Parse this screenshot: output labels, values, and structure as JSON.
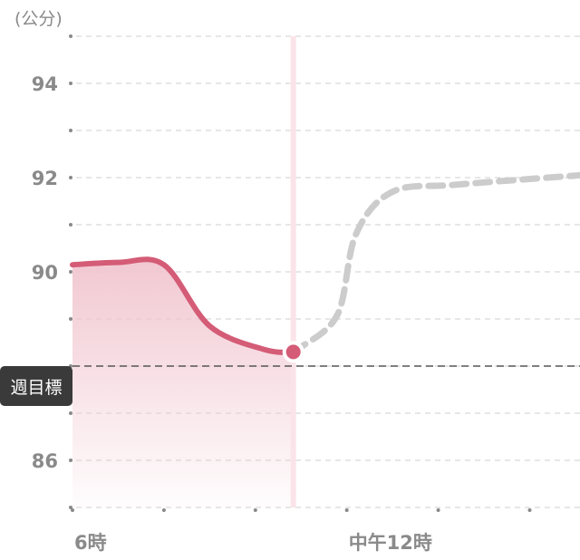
{
  "chart_data": {
    "type": "line",
    "unit_label": "(公分)",
    "y_ticks": [
      86,
      88,
      90,
      92,
      94
    ],
    "y_tick_labels": [
      "86",
      "",
      "90",
      "92",
      "94"
    ],
    "ylim": [
      85,
      95
    ],
    "x_ticks": [
      6,
      8,
      10,
      12,
      14,
      16
    ],
    "x_tick_labels": [
      {
        "x": 6,
        "label": "6時"
      },
      {
        "x": 12,
        "label": "中午12時"
      }
    ],
    "xlim": [
      6,
      17.1
    ],
    "grid": true,
    "current": {
      "x": 10.83,
      "y": 88.3
    },
    "series": [
      {
        "style": "solid",
        "points": [
          [
            6,
            90.15
          ],
          [
            7.0,
            90.2
          ],
          [
            8.0,
            90.15
          ],
          [
            9.0,
            88.85
          ],
          [
            10.2,
            88.35
          ],
          [
            10.83,
            88.3
          ]
        ]
      },
      {
        "style": "dashed",
        "points": [
          [
            10.83,
            88.3
          ],
          [
            11.0,
            88.4
          ],
          [
            11.8,
            89.1
          ],
          [
            12.2,
            90.8
          ],
          [
            13.0,
            91.7
          ],
          [
            14.4,
            91.85
          ],
          [
            17.1,
            92.05
          ]
        ]
      }
    ],
    "target": {
      "value": 88,
      "label": "週目標"
    },
    "colors": {
      "actual": "#d45c76",
      "forecast": "#cccccc",
      "fill": "#f1c5cf",
      "cursor": "#fbe4e9",
      "target_line": "#555555"
    }
  }
}
